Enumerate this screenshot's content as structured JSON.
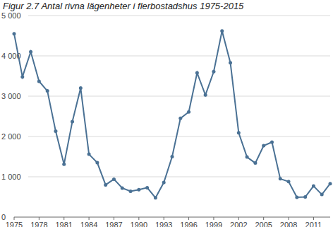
{
  "chart_data": {
    "type": "line",
    "title": "Figur 2.7 Antal rivna lägenheter i flerbostadshus 1975-2015",
    "x": [
      1975,
      1976,
      1977,
      1978,
      1979,
      1980,
      1981,
      1982,
      1983,
      1984,
      1985,
      1986,
      1987,
      1988,
      1989,
      1990,
      1991,
      1992,
      1993,
      1994,
      1995,
      1996,
      1997,
      1998,
      1999,
      2000,
      2001,
      2002,
      2003,
      2004,
      2005,
      2006,
      2007,
      2008,
      2009,
      2010,
      2011,
      2012,
      2013
    ],
    "series": [
      {
        "name": "Antal rivna lägenheter",
        "color": "#4a7194",
        "marker": "circle",
        "values": [
          4550,
          3480,
          4100,
          3370,
          3130,
          2130,
          1310,
          2370,
          3200,
          1560,
          1350,
          800,
          940,
          720,
          640,
          680,
          730,
          480,
          860,
          1500,
          2450,
          2610,
          3580,
          3030,
          3610,
          4620,
          3830,
          2090,
          1490,
          1340,
          1770,
          1860,
          950,
          880,
          490,
          500,
          770,
          560,
          830
        ]
      }
    ],
    "xlim": [
      1975,
      2013
    ],
    "xticks": [
      1975,
      1978,
      1981,
      1984,
      1987,
      1990,
      1993,
      1996,
      1999,
      2002,
      2005,
      2008,
      2011
    ],
    "ylim": [
      0,
      5000
    ],
    "yticks": [
      0,
      {
        "value": 1000,
        "label": "1 000"
      },
      {
        "value": 2000,
        "label": "2 000"
      },
      {
        "value": 3000,
        "label": "3 000"
      },
      {
        "value": 4000,
        "label": "4 000"
      },
      {
        "value": 5000,
        "label": "5 000"
      }
    ],
    "grid": true
  }
}
